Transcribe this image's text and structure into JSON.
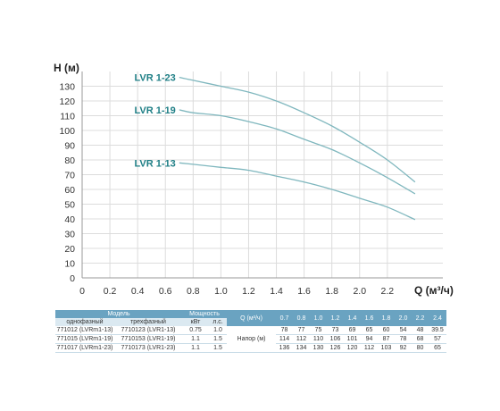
{
  "chart_data": {
    "type": "line",
    "ylabel": "H (м)",
    "xlabel": "Q (м³/ч)",
    "xlim": [
      0,
      2.6
    ],
    "ylim": [
      0,
      140
    ],
    "x_ticks": [
      "0",
      "0.2",
      "0.4",
      "0.6",
      "0.8",
      "1.0",
      "1.2",
      "1.4",
      "1.6",
      "1.8",
      "2.0",
      "2.2"
    ],
    "y_ticks": [
      "0",
      "10",
      "20",
      "30",
      "40",
      "50",
      "60",
      "70",
      "80",
      "90",
      "100",
      "110",
      "120",
      "130"
    ],
    "grid": true,
    "series": [
      {
        "name": "LVR 1-23",
        "x": [
          0.7,
          0.8,
          1.0,
          1.2,
          1.4,
          1.6,
          1.8,
          2.0,
          2.2,
          2.4
        ],
        "y": [
          136,
          134,
          130,
          126,
          120,
          112,
          103,
          92,
          80,
          65
        ]
      },
      {
        "name": "LVR 1-19",
        "x": [
          0.7,
          0.8,
          1.0,
          1.2,
          1.4,
          1.6,
          1.8,
          2.0,
          2.2,
          2.4
        ],
        "y": [
          114,
          112,
          110,
          106,
          101,
          94,
          87,
          78,
          68,
          57
        ]
      },
      {
        "name": "LVR 1-13",
        "x": [
          0.7,
          0.8,
          1.0,
          1.2,
          1.4,
          1.6,
          1.8,
          2.0,
          2.2,
          2.4
        ],
        "y": [
          78,
          77,
          75,
          73,
          69,
          65,
          60,
          54,
          48,
          39.5
        ]
      }
    ]
  },
  "table": {
    "model_header": "Модель",
    "single_phase": "однофазный",
    "three_phase": "трехфазный",
    "power_header": "Мощность",
    "kw": "кВт",
    "hp": "л.с.",
    "q_header": "Q (м³/ч)",
    "head_label": "Напор (м)",
    "q_values": [
      "0.7",
      "0.8",
      "1.0",
      "1.2",
      "1.4",
      "1.6",
      "1.8",
      "2.0",
      "2.2",
      "2.4"
    ],
    "rows": [
      {
        "single": "771012 (LVRm1-13)",
        "three": "7710123 (LVR1-13)",
        "kw": "0.75",
        "hp": "1.0",
        "heads": [
          "78",
          "77",
          "75",
          "73",
          "69",
          "65",
          "60",
          "54",
          "48",
          "39.5"
        ]
      },
      {
        "single": "771015 (LVRm1-19)",
        "three": "7710153 (LVR1-19)",
        "kw": "1.1",
        "hp": "1.5",
        "heads": [
          "114",
          "112",
          "110",
          "106",
          "101",
          "94",
          "87",
          "78",
          "68",
          "57"
        ]
      },
      {
        "single": "771017 (LVRm1-23)",
        "three": "7710173 (LVR1-23)",
        "kw": "1.1",
        "hp": "1.5",
        "heads": [
          "136",
          "134",
          "130",
          "126",
          "120",
          "112",
          "103",
          "92",
          "80",
          "65"
        ]
      }
    ]
  }
}
